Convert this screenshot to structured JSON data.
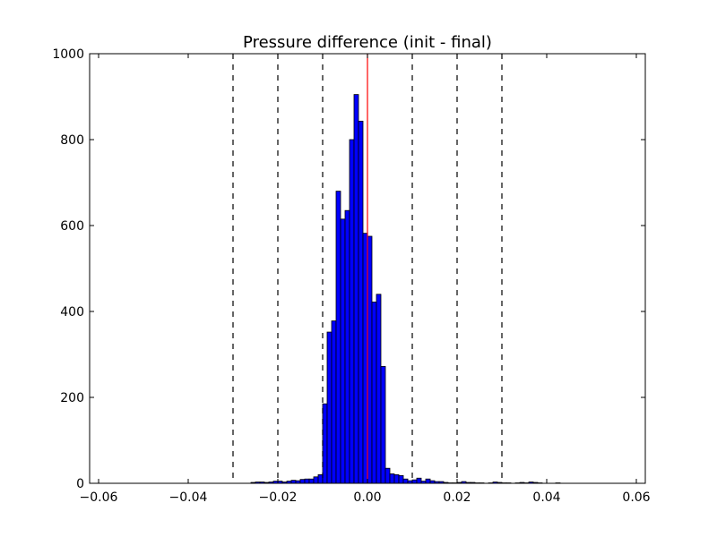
{
  "chart_data": {
    "type": "bar",
    "title": "Pressure difference (init - final)",
    "xlabel": "",
    "ylabel": "",
    "xlim": [
      -0.062,
      0.062
    ],
    "ylim": [
      0,
      1000
    ],
    "xticks": [
      {
        "value": -0.06,
        "label": "−0.06"
      },
      {
        "value": -0.04,
        "label": "−0.04"
      },
      {
        "value": -0.02,
        "label": "−0.02"
      },
      {
        "value": 0.0,
        "label": "0.00"
      },
      {
        "value": 0.02,
        "label": "0.02"
      },
      {
        "value": 0.04,
        "label": "0.04"
      },
      {
        "value": 0.06,
        "label": "0.06"
      }
    ],
    "yticks": [
      {
        "value": 0,
        "label": "0"
      },
      {
        "value": 200,
        "label": "200"
      },
      {
        "value": 400,
        "label": "400"
      },
      {
        "value": 600,
        "label": "600"
      },
      {
        "value": 800,
        "label": "800"
      },
      {
        "value": 1000,
        "label": "1000"
      }
    ],
    "grid": false,
    "bar_color": "#0000ff",
    "bar_edge_color": "#000000",
    "bins": [
      {
        "x0": -0.026,
        "x1": -0.025,
        "value": 2
      },
      {
        "x0": -0.025,
        "x1": -0.024,
        "value": 3
      },
      {
        "x0": -0.024,
        "x1": -0.023,
        "value": 3
      },
      {
        "x0": -0.023,
        "x1": -0.022,
        "value": 2
      },
      {
        "x0": -0.022,
        "x1": -0.021,
        "value": 3
      },
      {
        "x0": -0.021,
        "x1": -0.02,
        "value": 5
      },
      {
        "x0": -0.02,
        "x1": -0.019,
        "value": 5
      },
      {
        "x0": -0.019,
        "x1": -0.018,
        "value": 3
      },
      {
        "x0": -0.018,
        "x1": -0.017,
        "value": 5
      },
      {
        "x0": -0.017,
        "x1": -0.016,
        "value": 7
      },
      {
        "x0": -0.016,
        "x1": -0.015,
        "value": 6
      },
      {
        "x0": -0.015,
        "x1": -0.014,
        "value": 9
      },
      {
        "x0": -0.014,
        "x1": -0.013,
        "value": 10
      },
      {
        "x0": -0.013,
        "x1": -0.012,
        "value": 10
      },
      {
        "x0": -0.012,
        "x1": -0.011,
        "value": 15
      },
      {
        "x0": -0.011,
        "x1": -0.01,
        "value": 20
      },
      {
        "x0": -0.01,
        "x1": -0.009,
        "value": 185
      },
      {
        "x0": -0.009,
        "x1": -0.008,
        "value": 352
      },
      {
        "x0": -0.008,
        "x1": -0.007,
        "value": 378
      },
      {
        "x0": -0.007,
        "x1": -0.006,
        "value": 680
      },
      {
        "x0": -0.006,
        "x1": -0.005,
        "value": 615
      },
      {
        "x0": -0.005,
        "x1": -0.004,
        "value": 635
      },
      {
        "x0": -0.004,
        "x1": -0.003,
        "value": 800
      },
      {
        "x0": -0.003,
        "x1": -0.002,
        "value": 905
      },
      {
        "x0": -0.002,
        "x1": -0.001,
        "value": 843
      },
      {
        "x0": -0.001,
        "x1": 0.0,
        "value": 582
      },
      {
        "x0": 0.0,
        "x1": 0.001,
        "value": 575
      },
      {
        "x0": 0.001,
        "x1": 0.002,
        "value": 422
      },
      {
        "x0": 0.002,
        "x1": 0.003,
        "value": 440
      },
      {
        "x0": 0.003,
        "x1": 0.004,
        "value": 272
      },
      {
        "x0": 0.004,
        "x1": 0.005,
        "value": 35
      },
      {
        "x0": 0.005,
        "x1": 0.006,
        "value": 22
      },
      {
        "x0": 0.006,
        "x1": 0.007,
        "value": 20
      },
      {
        "x0": 0.007,
        "x1": 0.008,
        "value": 18
      },
      {
        "x0": 0.008,
        "x1": 0.009,
        "value": 10
      },
      {
        "x0": 0.009,
        "x1": 0.01,
        "value": 6
      },
      {
        "x0": 0.01,
        "x1": 0.011,
        "value": 8
      },
      {
        "x0": 0.011,
        "x1": 0.012,
        "value": 12
      },
      {
        "x0": 0.012,
        "x1": 0.013,
        "value": 5
      },
      {
        "x0": 0.013,
        "x1": 0.014,
        "value": 10
      },
      {
        "x0": 0.014,
        "x1": 0.015,
        "value": 6
      },
      {
        "x0": 0.015,
        "x1": 0.016,
        "value": 4
      },
      {
        "x0": 0.016,
        "x1": 0.017,
        "value": 4
      },
      {
        "x0": 0.017,
        "x1": 0.018,
        "value": 2
      },
      {
        "x0": 0.018,
        "x1": 0.019,
        "value": 1
      },
      {
        "x0": 0.019,
        "x1": 0.02,
        "value": 1
      },
      {
        "x0": 0.02,
        "x1": 0.021,
        "value": 2
      },
      {
        "x0": 0.021,
        "x1": 0.022,
        "value": 4
      },
      {
        "x0": 0.022,
        "x1": 0.023,
        "value": 2
      },
      {
        "x0": 0.023,
        "x1": 0.024,
        "value": 2
      },
      {
        "x0": 0.024,
        "x1": 0.025,
        "value": 1
      },
      {
        "x0": 0.025,
        "x1": 0.026,
        "value": 1
      },
      {
        "x0": 0.027,
        "x1": 0.028,
        "value": 1
      },
      {
        "x0": 0.028,
        "x1": 0.029,
        "value": 3
      },
      {
        "x0": 0.029,
        "x1": 0.03,
        "value": 2
      },
      {
        "x0": 0.03,
        "x1": 0.031,
        "value": 1
      },
      {
        "x0": 0.031,
        "x1": 0.032,
        "value": 1
      },
      {
        "x0": 0.033,
        "x1": 0.034,
        "value": 1
      },
      {
        "x0": 0.034,
        "x1": 0.035,
        "value": 2
      },
      {
        "x0": 0.035,
        "x1": 0.036,
        "value": 1
      },
      {
        "x0": 0.036,
        "x1": 0.037,
        "value": 3
      },
      {
        "x0": 0.037,
        "x1": 0.038,
        "value": 2
      },
      {
        "x0": 0.038,
        "x1": 0.039,
        "value": 1
      },
      {
        "x0": 0.042,
        "x1": 0.043,
        "value": 1
      }
    ],
    "vlines": [
      {
        "x": -0.03,
        "style": "dashed",
        "color": "#000000"
      },
      {
        "x": -0.02,
        "style": "dashed",
        "color": "#000000"
      },
      {
        "x": -0.01,
        "style": "dashed",
        "color": "#000000"
      },
      {
        "x": 0.0,
        "style": "solid",
        "color": "#ff0000"
      },
      {
        "x": 0.01,
        "style": "dashed",
        "color": "#000000"
      },
      {
        "x": 0.02,
        "style": "dashed",
        "color": "#000000"
      },
      {
        "x": 0.03,
        "style": "dashed",
        "color": "#000000"
      }
    ]
  }
}
